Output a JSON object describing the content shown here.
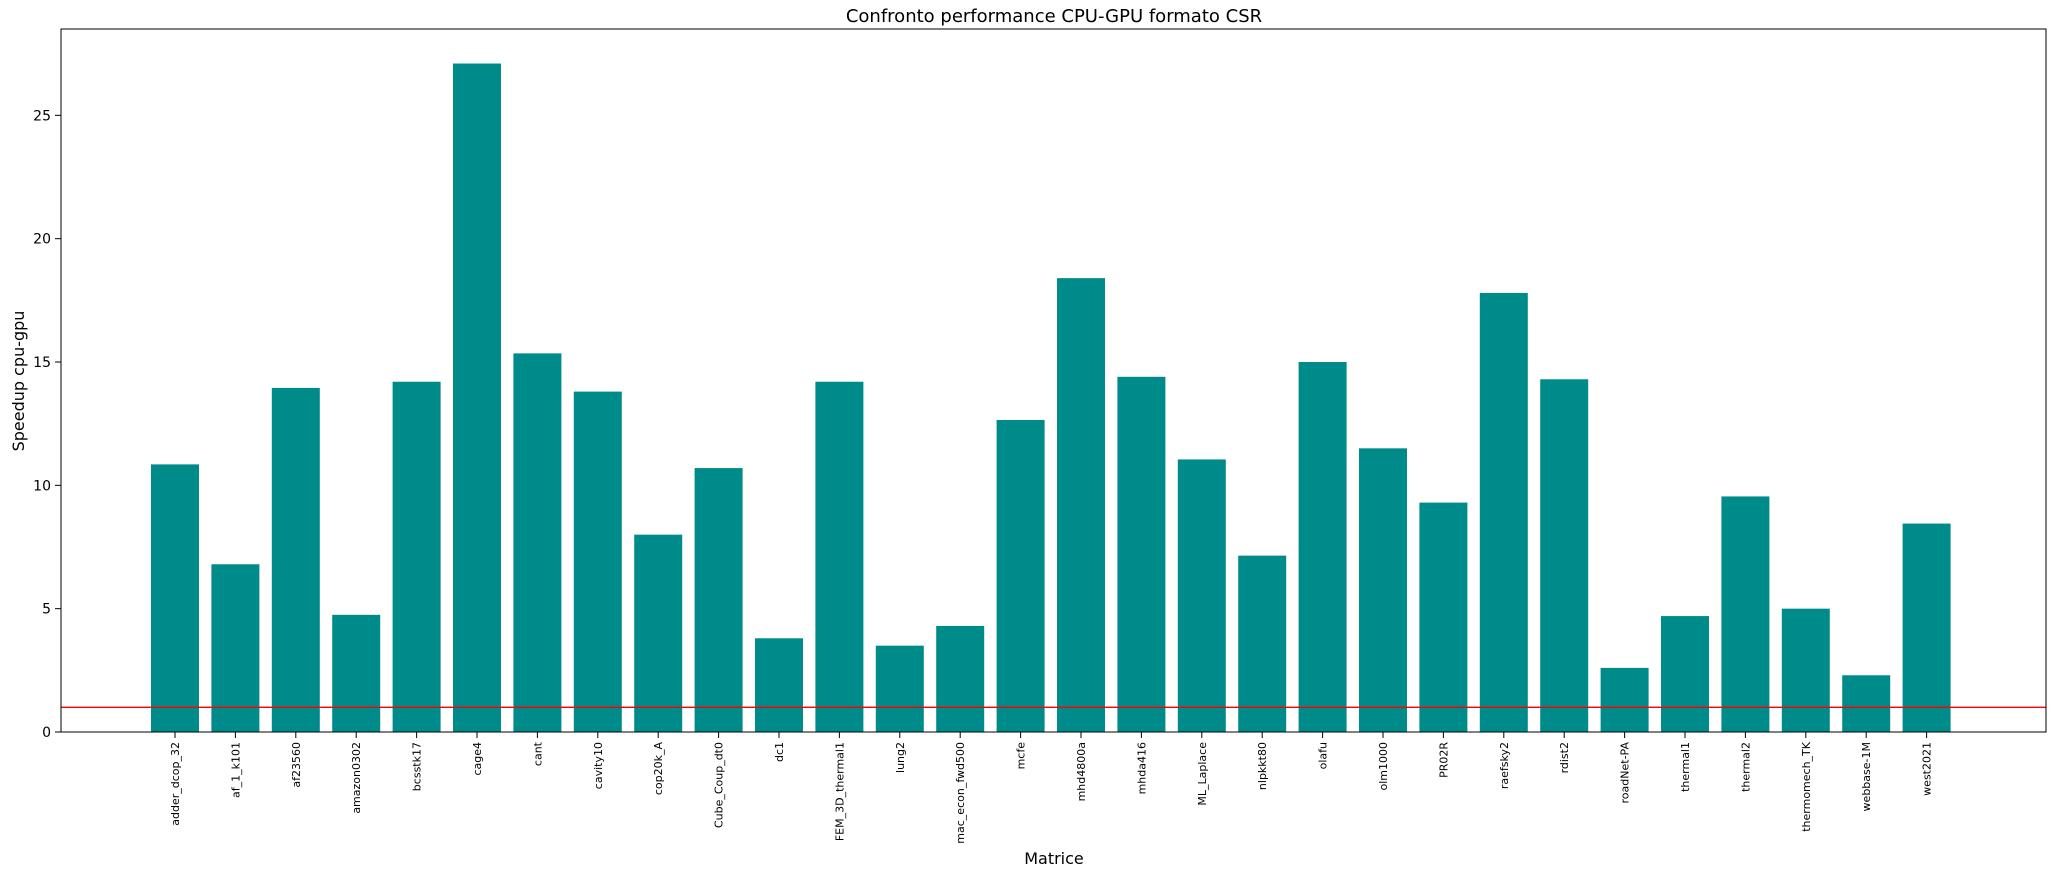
{
  "chart_data": {
    "type": "bar",
    "title": "Confronto performance CPU-GPU formato CSR",
    "xlabel": "Matrice",
    "ylabel": "Speedup cpu-gpu",
    "ylim": [
      0,
      28.5
    ],
    "yticks": [
      0,
      5,
      10,
      15,
      20,
      25
    ],
    "grid": false,
    "bar_color": "#008b8b",
    "reference_line": {
      "value": 1,
      "color": "#ff0000"
    },
    "categories": [
      "adder_dcop_32",
      "af_1_k101",
      "af23560",
      "amazon0302",
      "bcsstk17",
      "cage4",
      "cant",
      "cavity10",
      "cop20k_A",
      "Cube_Coup_dt0",
      "dc1",
      "FEM_3D_thermal1",
      "lung2",
      "mac_econ_fwd500",
      "mcfe",
      "mhd4800a",
      "mhda416",
      "ML_Laplace",
      "nlpkkt80",
      "olafu",
      "olm1000",
      "PR02R",
      "raefsky2",
      "rdist2",
      "roadNet-PA",
      "thermal1",
      "thermal2",
      "thermomech_TK",
      "webbase-1M",
      "west2021"
    ],
    "values": [
      10.85,
      6.8,
      13.95,
      4.75,
      14.2,
      27.1,
      15.35,
      13.8,
      8.0,
      10.7,
      3.8,
      14.2,
      3.5,
      4.3,
      12.65,
      18.4,
      14.4,
      11.05,
      7.15,
      15.0,
      11.5,
      9.3,
      17.8,
      14.3,
      2.6,
      4.7,
      9.55,
      5.0,
      2.3,
      8.45
    ]
  }
}
